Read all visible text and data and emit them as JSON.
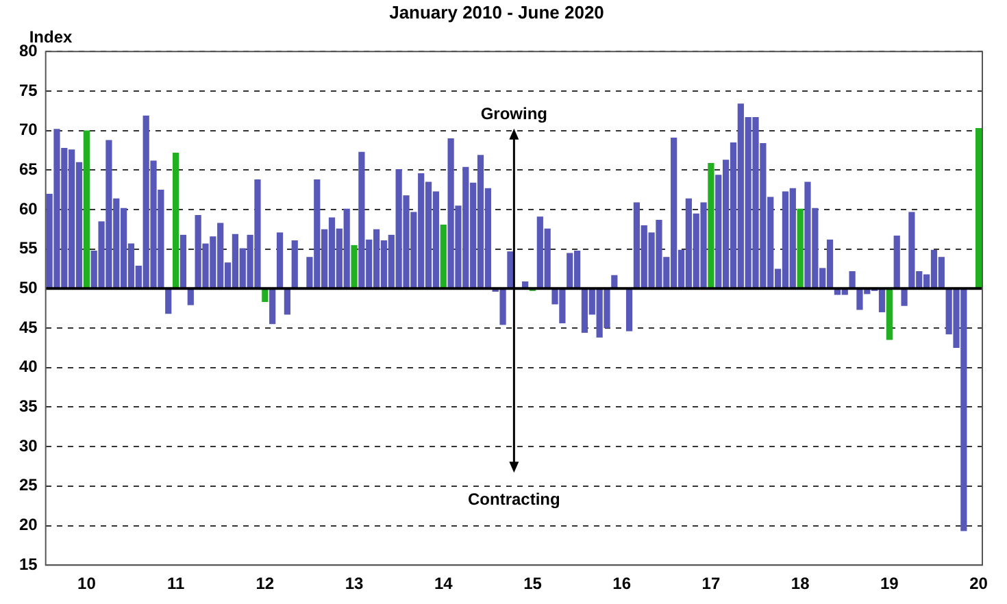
{
  "chart_data": {
    "type": "bar",
    "title": "January 2010 - June 2020",
    "ylabel": "Index",
    "categories": [
      null,
      null,
      null,
      null,
      null,
      "10",
      null,
      null,
      null,
      null,
      null,
      null,
      null,
      null,
      null,
      null,
      null,
      "11",
      null,
      null,
      null,
      null,
      null,
      null,
      null,
      null,
      null,
      null,
      null,
      "12",
      null,
      null,
      null,
      null,
      null,
      null,
      null,
      null,
      null,
      null,
      null,
      "13",
      null,
      null,
      null,
      null,
      null,
      null,
      null,
      null,
      null,
      null,
      null,
      "14",
      null,
      null,
      null,
      null,
      null,
      null,
      null,
      null,
      null,
      null,
      null,
      "15",
      null,
      null,
      null,
      null,
      null,
      null,
      null,
      null,
      null,
      null,
      null,
      "16",
      null,
      null,
      null,
      null,
      null,
      null,
      null,
      null,
      null,
      null,
      null,
      "17",
      null,
      null,
      null,
      null,
      null,
      null,
      null,
      null,
      null,
      null,
      null,
      "18",
      null,
      null,
      null,
      null,
      null,
      null,
      null,
      null,
      null,
      null,
      null,
      "19",
      null,
      null,
      null,
      null,
      null,
      null,
      null,
      null,
      null,
      null,
      null,
      "20"
    ],
    "base": [
      50,
      50,
      50,
      50,
      50,
      50,
      50,
      50,
      50,
      50,
      50,
      50,
      50,
      50,
      50,
      50,
      50,
      50,
      50,
      50,
      50,
      50,
      50,
      50,
      50,
      50,
      50,
      50,
      50,
      50,
      50,
      50,
      50,
      50,
      null,
      50,
      50,
      50,
      50,
      50,
      50,
      50,
      50,
      50,
      50,
      50,
      50,
      50,
      50,
      50,
      50,
      50,
      50,
      50,
      50,
      50,
      50,
      50,
      50,
      50,
      50,
      50,
      50,
      null,
      50,
      50,
      50,
      50,
      50,
      50,
      50,
      50,
      50,
      50,
      50,
      50,
      50,
      null,
      50,
      50,
      50,
      50,
      50,
      50,
      50,
      50,
      50,
      50,
      50,
      50,
      50,
      50,
      50,
      50,
      50,
      50,
      50,
      50,
      50,
      50,
      50,
      50,
      50,
      50,
      50,
      50,
      50,
      50,
      50,
      50,
      50,
      50,
      50,
      50,
      50,
      50,
      50,
      50,
      50,
      50,
      50,
      50,
      50,
      50,
      null,
      50
    ],
    "values": [
      12.0,
      20.2,
      17.8,
      17.6,
      16.0,
      20.0,
      4.8,
      8.5,
      18.8,
      11.4,
      10.2,
      5.7,
      2.9,
      21.9,
      16.2,
      12.5,
      -3.2,
      17.2,
      6.8,
      -2.1,
      9.3,
      5.7,
      6.6,
      8.3,
      3.3,
      6.9,
      5.1,
      6.8,
      13.8,
      -1.7,
      -4.5,
      7.1,
      -3.3,
      6.1,
      null,
      4.0,
      13.8,
      7.5,
      9.0,
      7.6,
      10.1,
      5.5,
      17.3,
      6.2,
      7.5,
      6.1,
      6.8,
      15.1,
      11.8,
      9.7,
      14.6,
      13.5,
      12.3,
      8.1,
      19.0,
      10.5,
      15.4,
      13.4,
      16.9,
      12.7,
      -0.4,
      -4.6,
      4.7,
      null,
      0.9,
      -0.3,
      9.1,
      7.6,
      -2.0,
      -4.4,
      4.5,
      4.8,
      -5.6,
      -3.3,
      -6.2,
      -5.0,
      1.7,
      null,
      -5.4,
      10.9,
      8.0,
      7.1,
      8.7,
      4.0,
      19.1,
      4.9,
      11.4,
      9.5,
      10.9,
      15.9,
      14.4,
      16.3,
      18.5,
      23.4,
      21.7,
      21.7,
      18.4,
      11.6,
      2.5,
      12.3,
      12.7,
      10.1,
      13.5,
      10.2,
      2.6,
      6.2,
      -0.8,
      -0.8,
      2.2,
      -2.7,
      -0.7,
      -0.3,
      -3.0,
      -6.5,
      6.7,
      -2.2,
      9.7,
      2.2,
      1.8,
      4.9,
      4.0,
      -5.8,
      -7.5,
      -30.7,
      null,
      20.3
    ],
    "colors": [
      "#5858b8",
      "#5858b8",
      "#5858b8",
      "#5858b8",
      "#5858b8",
      "#22b022",
      "#5858b8",
      "#5858b8",
      "#5858b8",
      "#5858b8",
      "#5858b8",
      "#5858b8",
      "#5858b8",
      "#5858b8",
      "#5858b8",
      "#5858b8",
      "#5858b8",
      "#22b022",
      "#5858b8",
      "#5858b8",
      "#5858b8",
      "#5858b8",
      "#5858b8",
      "#5858b8",
      "#5858b8",
      "#5858b8",
      "#5858b8",
      "#5858b8",
      "#5858b8",
      "#22b022",
      "#5858b8",
      "#5858b8",
      "#5858b8",
      "#5858b8",
      "#5858b8",
      "#5858b8",
      "#5858b8",
      "#5858b8",
      "#5858b8",
      "#5858b8",
      "#5858b8",
      "#22b022",
      "#5858b8",
      "#5858b8",
      "#5858b8",
      "#5858b8",
      "#5858b8",
      "#5858b8",
      "#5858b8",
      "#5858b8",
      "#5858b8",
      "#5858b8",
      "#5858b8",
      "#22b022",
      "#5858b8",
      "#5858b8",
      "#5858b8",
      "#5858b8",
      "#5858b8",
      "#5858b8",
      "#5858b8",
      "#5858b8",
      "#5858b8",
      "#5858b8",
      "#5858b8",
      "#22b022",
      "#5858b8",
      "#5858b8",
      "#5858b8",
      "#5858b8",
      "#5858b8",
      "#5858b8",
      "#5858b8",
      "#5858b8",
      "#5858b8",
      "#5858b8",
      "#5858b8",
      "#22b022",
      "#5858b8",
      "#5858b8",
      "#5858b8",
      "#5858b8",
      "#5858b8",
      "#5858b8",
      "#5858b8",
      "#5858b8",
      "#5858b8",
      "#5858b8",
      "#5858b8",
      "#22b022",
      "#5858b8",
      "#5858b8",
      "#5858b8",
      "#5858b8",
      "#5858b8",
      "#5858b8",
      "#5858b8",
      "#5858b8",
      "#5858b8",
      "#5858b8",
      "#5858b8",
      "#22b022",
      "#5858b8",
      "#5858b8",
      "#5858b8",
      "#5858b8",
      "#5858b8",
      "#5858b8",
      "#5858b8",
      "#5858b8",
      "#5858b8",
      "#5858b8",
      "#5858b8",
      "#22b022",
      "#5858b8",
      "#5858b8",
      "#5858b8",
      "#5858b8",
      "#5858b8",
      "#5858b8",
      "#5858b8",
      "#5858b8",
      "#5858b8",
      "#5858b8",
      "#5858b8",
      "#22b022"
    ],
    "ylim": [
      15,
      80
    ],
    "yticks": [
      15,
      20,
      25,
      30,
      35,
      40,
      45,
      50,
      55,
      60,
      65,
      70,
      75,
      80
    ],
    "ref_lines": [
      {
        "axis": "y",
        "value": 50,
        "color": "#000000"
      }
    ],
    "annotations": [
      "Growing",
      "Contracting"
    ],
    "grid": "y",
    "legend": false
  }
}
